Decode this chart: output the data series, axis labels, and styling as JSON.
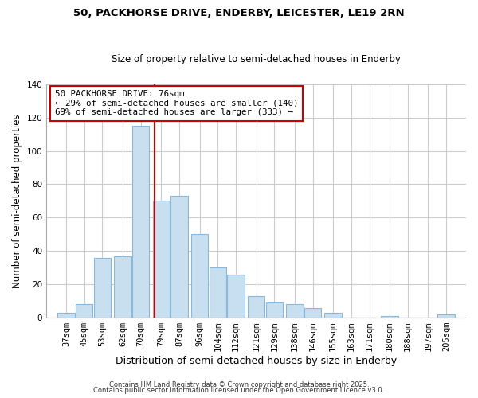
{
  "title": "50, PACKHORSE DRIVE, ENDERBY, LEICESTER, LE19 2RN",
  "subtitle": "Size of property relative to semi-detached houses in Enderby",
  "xlabel": "Distribution of semi-detached houses by size in Enderby",
  "ylabel": "Number of semi-detached properties",
  "categories": [
    "37sqm",
    "45sqm",
    "53sqm",
    "62sqm",
    "70sqm",
    "79sqm",
    "87sqm",
    "96sqm",
    "104sqm",
    "112sqm",
    "121sqm",
    "129sqm",
    "138sqm",
    "146sqm",
    "155sqm",
    "163sqm",
    "171sqm",
    "180sqm",
    "188sqm",
    "197sqm",
    "205sqm"
  ],
  "values": [
    3,
    8,
    36,
    37,
    115,
    70,
    73,
    50,
    30,
    26,
    13,
    9,
    8,
    6,
    3,
    0,
    0,
    1,
    0,
    0,
    2
  ],
  "bar_color": "#c8dff0",
  "bar_edge_color": "#8ab8d8",
  "highlight_line_color": "#cc0000",
  "annotation_title": "50 PACKHORSE DRIVE: 76sqm",
  "annotation_line1": "← 29% of semi-detached houses are smaller (140)",
  "annotation_line2": "69% of semi-detached houses are larger (333) →",
  "annotation_box_facecolor": "#ffffff",
  "annotation_box_edgecolor": "#cc0000",
  "ylim": [
    0,
    140
  ],
  "yticks": [
    0,
    20,
    40,
    60,
    80,
    100,
    120,
    140
  ],
  "fig_background": "#ffffff",
  "plot_background": "#ffffff",
  "grid_color": "#cccccc",
  "footer1": "Contains HM Land Registry data © Crown copyright and database right 2025.",
  "footer2": "Contains public sector information licensed under the Open Government Licence v3.0.",
  "property_sqm": 76
}
